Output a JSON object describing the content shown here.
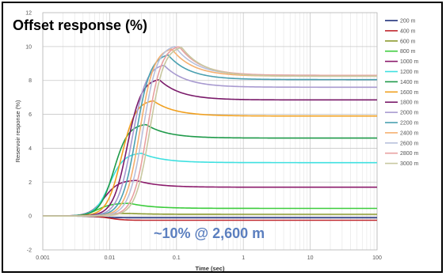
{
  "chart_data": {
    "type": "line",
    "title": "Offset response (%)",
    "xlabel": "Time (sec)",
    "ylabel": "Reservoir response (%)",
    "x_scale": "log",
    "xlim": [
      0.001,
      100
    ],
    "ylim": [
      -2,
      12
    ],
    "x_ticks": [
      "0.001",
      "0.01",
      "0.1",
      "1",
      "10",
      "100"
    ],
    "y_ticks": [
      "-2",
      "0",
      "2",
      "4",
      "6",
      "8",
      "10",
      "12"
    ],
    "grid": true,
    "legend_position": "right",
    "annotation": "~10% @ 2,600 m",
    "series": [
      {
        "name": "200 m",
        "color": "#1f2f7a",
        "peak": -0.1,
        "t_peak": 0.02,
        "plateau": -0.1
      },
      {
        "name": "400 m",
        "color": "#c0262c",
        "peak": -0.25,
        "t_peak": 0.03,
        "plateau": -0.25
      },
      {
        "name": "600 m",
        "color": "#8b9a2e",
        "peak": 0.15,
        "t_peak": 0.02,
        "plateau": 0.1
      },
      {
        "name": "800 m",
        "color": "#3ccc3c",
        "peak": 0.75,
        "t_peak": 0.02,
        "plateau": 0.45
      },
      {
        "name": "1000 m",
        "color": "#8b1a6b",
        "peak": 2.1,
        "t_peak": 0.025,
        "plateau": 1.7
      },
      {
        "name": "1200 m",
        "color": "#3fe0e0",
        "peak": 3.7,
        "t_peak": 0.03,
        "plateau": 3.15
      },
      {
        "name": "1400 m",
        "color": "#1f9a4a",
        "peak": 5.4,
        "t_peak": 0.035,
        "plateau": 4.6
      },
      {
        "name": "1600 m",
        "color": "#f0a020",
        "peak": 6.8,
        "t_peak": 0.045,
        "plateau": 5.9
      },
      {
        "name": "1800 m",
        "color": "#7a1a6a",
        "peak": 8.05,
        "t_peak": 0.055,
        "plateau": 6.85
      },
      {
        "name": "2000 m",
        "color": "#a89ad0",
        "peak": 8.9,
        "t_peak": 0.065,
        "plateau": 7.6
      },
      {
        "name": "2200 m",
        "color": "#4aa0b0",
        "peak": 9.5,
        "t_peak": 0.075,
        "plateau": 8.05
      },
      {
        "name": "2400 m",
        "color": "#f5b070",
        "peak": 9.85,
        "t_peak": 0.085,
        "plateau": 8.25
      },
      {
        "name": "2600 m",
        "color": "#b8c0dc",
        "peak": 10.0,
        "t_peak": 0.095,
        "plateau": 8.3
      },
      {
        "name": "2800 m",
        "color": "#e8a0a0",
        "peak": 10.0,
        "t_peak": 0.11,
        "plateau": 8.3
      },
      {
        "name": "3000 m",
        "color": "#c8c8a0",
        "peak": 9.95,
        "t_peak": 0.12,
        "plateau": 8.25
      }
    ]
  }
}
